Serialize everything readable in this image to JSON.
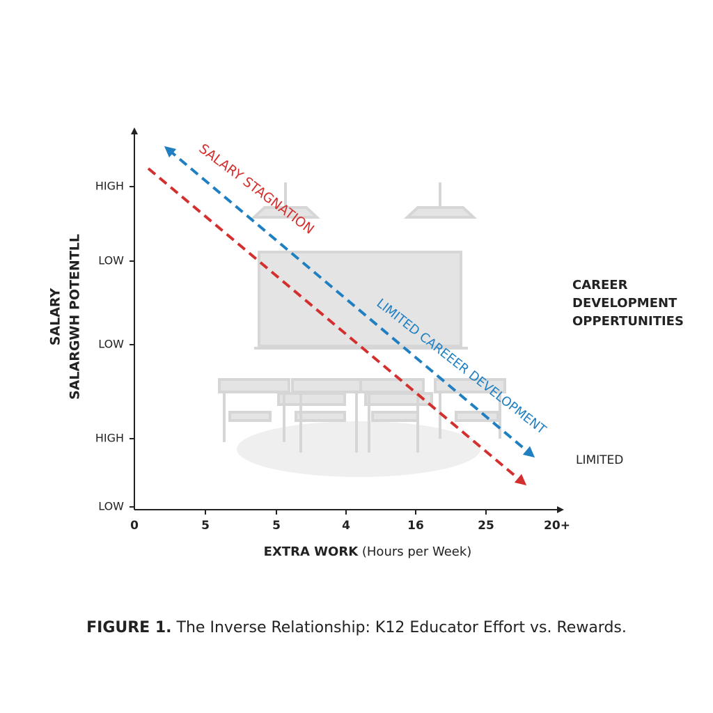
{
  "figure": {
    "y_axis": {
      "title_lines": [
        "SALARY",
        "SALARGWH POTENTLL"
      ],
      "ticks": [
        "HIGH",
        "LOW",
        "LOW",
        "HIGH",
        "LOW"
      ]
    },
    "x_axis": {
      "title_bold": "EXTRA WORK",
      "title_rest": " (Hours per Week)",
      "ticks": [
        "0",
        "5",
        "5",
        "4",
        "16",
        "25",
        "20+"
      ]
    },
    "lines": [
      {
        "label": "SALARY STAGNATION",
        "color": "#d32f2f"
      },
      {
        "label": "LIMITED CAREEER DEVELOPMENT",
        "color": "#1f7fc0"
      }
    ],
    "side_labels": {
      "top": [
        "CAREER",
        "DEVELOPMENT",
        "OPPERTUNITIES"
      ],
      "bottom": "LIMITED"
    },
    "caption_bold": "FIGURE 1.",
    "caption_rest": " The Inverse Relationship: K12 Educator Effort vs. Rewards."
  }
}
